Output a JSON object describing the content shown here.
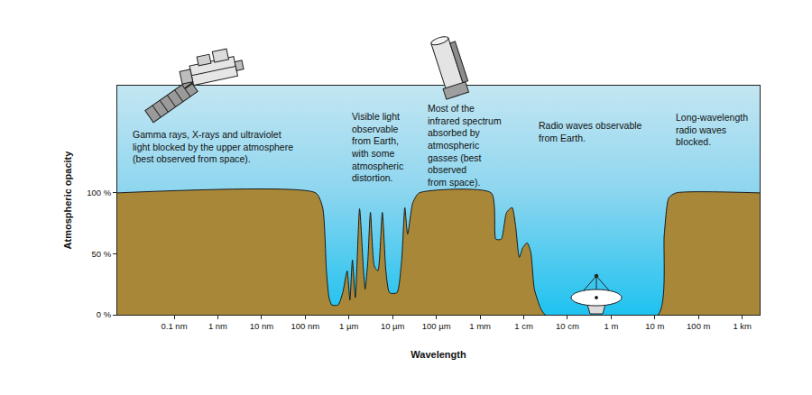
{
  "chart_data": {
    "type": "area",
    "x_label": "Wavelength",
    "y_label": "Atmospheric opacity",
    "x": [
      5e-12,
      1.73e-07,
      2.5e-07,
      3.05e-07,
      3.5e-07,
      4.05e-07,
      5.65e-07,
      7.2e-07,
      9.1e-07,
      1.05e-06,
      1.2e-06,
      1.4e-06,
      1.75e-06,
      2.15e-06,
      2.35e-06,
      2.7e-06,
      3.1e-06,
      3.8e-06,
      4.6e-06,
      5.8e-06,
      7e-06,
      8.5e-06,
      1.25e-05,
      1.6e-05,
      1.9e-05,
      2.2e-05,
      2.9e-05,
      4.05e-05,
      0.0018,
      0.0023,
      0.00305,
      0.00405,
      0.0054,
      0.0065,
      0.0079,
      0.0095,
      0.012,
      0.0145,
      0.0175,
      0.0245,
      0.031,
      11.8,
      16.4,
      20.9,
      30.5,
      2500
    ],
    "values": [
      100,
      100,
      88,
      36,
      14,
      8,
      8,
      18,
      36,
      12,
      45,
      14,
      87,
      36,
      21,
      44,
      84,
      40,
      36,
      84,
      36,
      18,
      18,
      44,
      88,
      66,
      92,
      100,
      100,
      62,
      62,
      84,
      88,
      73,
      47,
      55,
      59,
      51,
      21,
      5,
      0,
      0,
      66,
      96,
      100,
      100
    ],
    "color": "#a88838",
    "log": "x",
    "grid": false,
    "xlim": [
      5e-12,
      2500
    ],
    "xticks": [
      {
        "value": 1e-10,
        "label": "0.1 nm"
      },
      {
        "value": 1e-09,
        "label": "1 nm"
      },
      {
        "value": 1e-08,
        "label": "10 nm"
      },
      {
        "value": 1e-07,
        "label": "100 nm"
      },
      {
        "value": 1e-06,
        "label": "1 µm"
      },
      {
        "value": 1e-05,
        "label": "10 µm"
      },
      {
        "value": 0.0001,
        "label": "100 µm"
      },
      {
        "value": 0.001,
        "label": "1 mm"
      },
      {
        "value": 0.01,
        "label": "1 cm"
      },
      {
        "value": 0.1,
        "label": "10 cm"
      },
      {
        "value": 1,
        "label": "1 m"
      },
      {
        "value": 10,
        "label": "10 m"
      },
      {
        "value": 100,
        "label": "100 m"
      },
      {
        "value": 1000,
        "label": "1 km"
      }
    ],
    "ylim": [
      0,
      188
    ],
    "yticks": [
      {
        "value": 0,
        "label": "0 %"
      },
      {
        "value": 50,
        "label": "50 %"
      },
      {
        "value": 100,
        "label": "100 %"
      }
    ],
    "visible_band": [
      3.05e-07,
      7.7e-07
    ],
    "annotations": [
      {
        "text": [
          "Gamma rays, X-rays and ultraviolet",
          "light blocked by the upper atmosphere",
          "(best observed from space)."
        ]
      },
      {
        "text": [
          "Visible light",
          "observable",
          "from Earth,",
          "with some",
          "atmospheric",
          "distortion."
        ]
      },
      {
        "text": [
          "Most of the",
          "infrared spectrum",
          "absorbed by",
          "atmospheric",
          "gasses (best",
          "observed",
          "from space)."
        ]
      },
      {
        "text": [
          "Radio waves observable",
          "from Earth."
        ]
      },
      {
        "text": [
          "Long-wavelength",
          "radio waves",
          "blocked."
        ]
      }
    ]
  }
}
